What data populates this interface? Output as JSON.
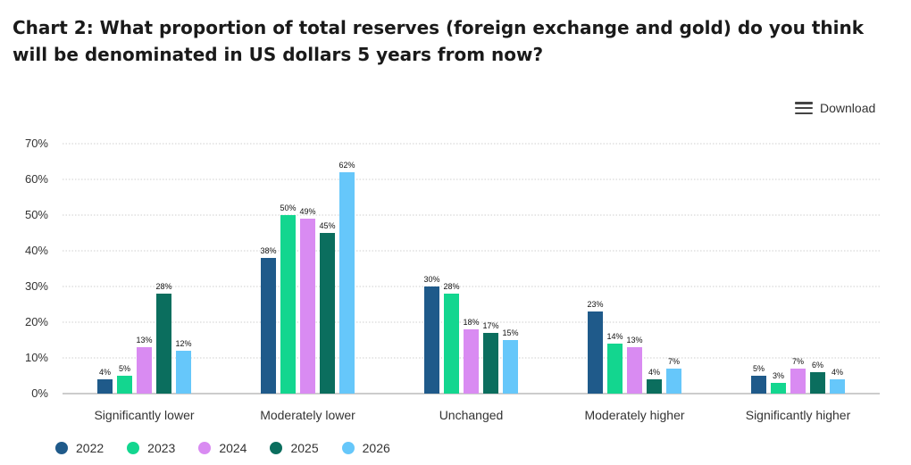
{
  "title": "Chart 2: What proportion of total reserves (foreign exchange and gold) do you think will be denominated in US dollars 5 years from now?",
  "download_label": "Download",
  "icons": {
    "download": "hamburger-menu-icon"
  },
  "chart_data": {
    "type": "bar",
    "categories": [
      "Significantly lower",
      "Moderately lower",
      "Unchanged",
      "Moderately higher",
      "Significantly higher"
    ],
    "series": [
      {
        "name": "2022",
        "color": "#1f5a8a",
        "values": [
          4,
          38,
          30,
          23,
          5
        ]
      },
      {
        "name": "2023",
        "color": "#13d68f",
        "values": [
          5,
          50,
          28,
          14,
          3
        ]
      },
      {
        "name": "2024",
        "color": "#d98bf2",
        "values": [
          13,
          49,
          18,
          13,
          7
        ]
      },
      {
        "name": "2025",
        "color": "#0b6e5e",
        "values": [
          28,
          45,
          17,
          4,
          6
        ]
      },
      {
        "name": "2026",
        "color": "#66c7fa",
        "values": [
          12,
          62,
          15,
          7,
          4
        ]
      }
    ],
    "ylim": [
      0,
      70
    ],
    "yticks": [
      0,
      10,
      20,
      30,
      40,
      50,
      60,
      70
    ],
    "ytick_suffix": "%",
    "value_suffix": "%",
    "grid": true,
    "legend_position": "bottom-left"
  }
}
